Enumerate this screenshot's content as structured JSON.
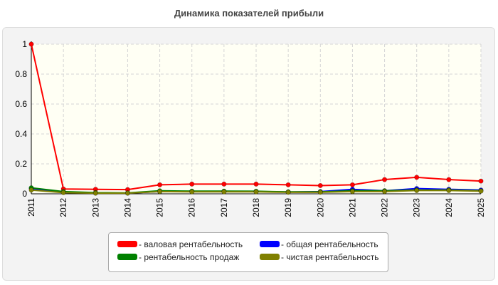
{
  "chart_data": {
    "type": "line",
    "title": "Динамика показателей прибыли",
    "x": [
      "2011",
      "2012",
      "2013",
      "2014",
      "2015",
      "2016",
      "2017",
      "2018",
      "2019",
      "2020",
      "2021",
      "2022",
      "2023",
      "2024",
      "2025"
    ],
    "ylim": [
      0,
      1
    ],
    "yticks": [
      "0",
      "0.2",
      "0.4",
      "0.6",
      "0.8",
      "1"
    ],
    "grid": true,
    "legend_position": "bottom",
    "series": [
      {
        "name": "- валовая рентабельность",
        "color": "#ff0000",
        "values": [
          1.0,
          0.032,
          0.03,
          0.028,
          0.06,
          0.065,
          0.065,
          0.065,
          0.06,
          0.055,
          0.06,
          0.095,
          0.11,
          0.095,
          0.085
        ]
      },
      {
        "name": "- общая рентабельность",
        "color": "#0000ff",
        "values": [
          0.035,
          0.01,
          0.005,
          0.005,
          0.015,
          0.015,
          0.015,
          0.015,
          0.012,
          0.015,
          0.03,
          0.02,
          0.035,
          0.03,
          0.025
        ]
      },
      {
        "name": "- рентабельность продаж",
        "color": "#008000",
        "values": [
          0.04,
          0.015,
          0.008,
          0.006,
          0.02,
          0.018,
          0.018,
          0.017,
          0.013,
          0.013,
          0.02,
          0.02,
          0.025,
          0.025,
          0.02
        ]
      },
      {
        "name": "- чистая рентабельность",
        "color": "#808000",
        "values": [
          0.025,
          0.008,
          0.004,
          0.004,
          0.015,
          0.013,
          0.013,
          0.013,
          0.01,
          0.01,
          0.015,
          0.015,
          0.022,
          0.022,
          0.018
        ]
      }
    ]
  }
}
